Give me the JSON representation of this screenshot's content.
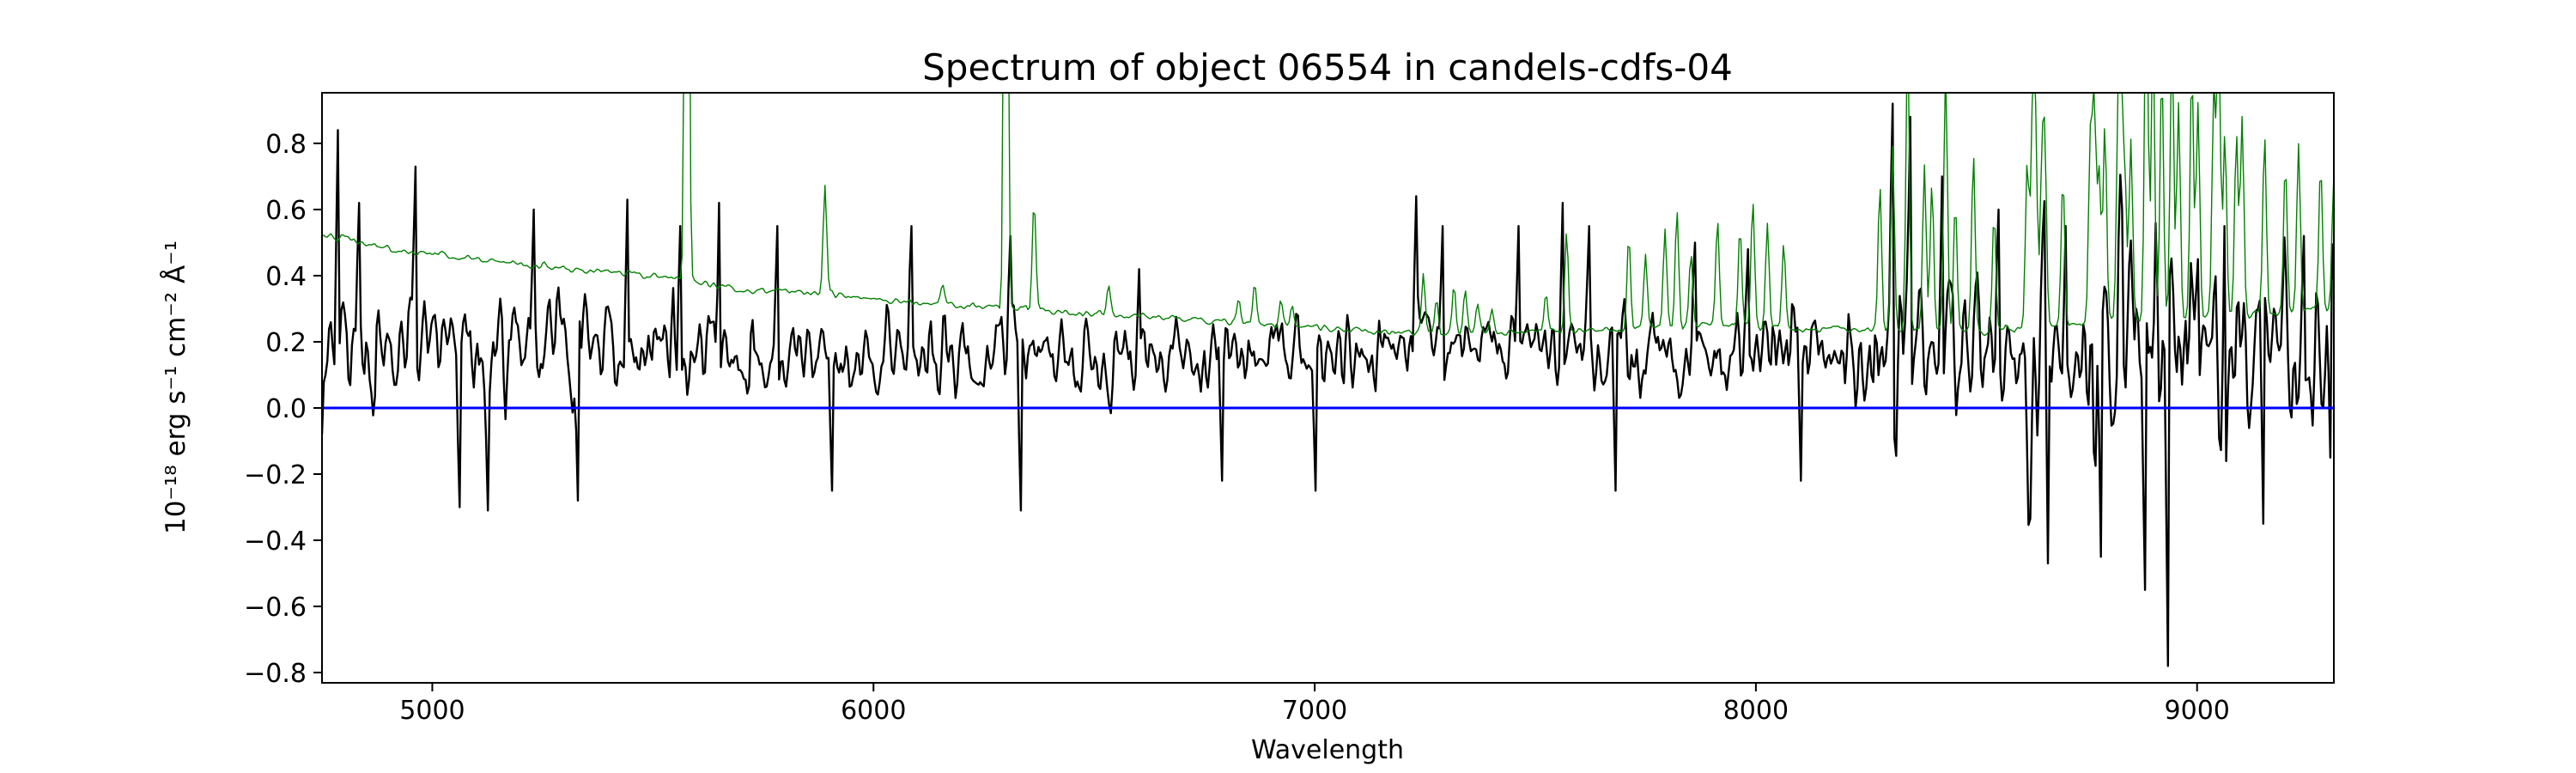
{
  "chart_data": {
    "type": "line",
    "title": "Spectrum of object 06554 in candels-cdfs-04",
    "xlabel": "Wavelength",
    "ylabel": "10⁻¹⁸ erg s⁻¹ cm⁻² Å⁻¹",
    "xlim": [
      4750,
      9310
    ],
    "ylim": [
      -0.831,
      0.953
    ],
    "grid": false,
    "legend": null,
    "xticks": [
      {
        "v": 5000,
        "label": "5000"
      },
      {
        "v": 6000,
        "label": "6000"
      },
      {
        "v": 7000,
        "label": "7000"
      },
      {
        "v": 8000,
        "label": "8000"
      },
      {
        "v": 9000,
        "label": "9000"
      }
    ],
    "yticks": [
      {
        "v": 0.8,
        "label": "0.8"
      },
      {
        "v": 0.6,
        "label": "0.6"
      },
      {
        "v": 0.4,
        "label": "0.4"
      },
      {
        "v": 0.2,
        "label": "0.2"
      },
      {
        "v": 0.0,
        "label": "0.0"
      },
      {
        "v": -0.2,
        "label": "−0.2"
      },
      {
        "v": -0.4,
        "label": "−0.4"
      },
      {
        "v": -0.6,
        "label": "−0.6"
      },
      {
        "v": -0.8,
        "label": "−0.8"
      }
    ],
    "series": [
      {
        "name": "object-flux-spectrum",
        "color": "#000000",
        "width": 2.4
      },
      {
        "name": "noise-sky-spectrum",
        "color": "#008000",
        "width": 1.4
      },
      {
        "name": "zero-flux-line",
        "color": "#0000ff",
        "width": 3.0,
        "y": 0.0
      }
    ],
    "synthesis": {
      "seed": 42,
      "step": 4,
      "black_continuum": [
        [
          4750,
          0.2
        ],
        [
          5200,
          0.18
        ],
        [
          5800,
          0.16
        ],
        [
          6400,
          0.15
        ],
        [
          6900,
          0.17
        ],
        [
          7400,
          0.2
        ],
        [
          7900,
          0.17
        ],
        [
          8400,
          0.17
        ],
        [
          9310,
          0.15
        ]
      ],
      "black_sigma": [
        [
          4750,
          0.155
        ],
        [
          5300,
          0.13
        ],
        [
          6000,
          0.105
        ],
        [
          6800,
          0.095
        ],
        [
          7300,
          0.09
        ],
        [
          7800,
          0.1
        ],
        [
          8300,
          0.12
        ],
        [
          8700,
          0.14
        ],
        [
          9310,
          0.13
        ]
      ],
      "black_features": [
        [
          4785,
          0.84
        ],
        [
          4835,
          0.62
        ],
        [
          4960,
          0.73
        ],
        [
          5060,
          -0.3
        ],
        [
          5125,
          -0.31
        ],
        [
          5230,
          0.6
        ],
        [
          5330,
          -0.28
        ],
        [
          5440,
          0.63
        ],
        [
          5560,
          0.55
        ],
        [
          5650,
          0.62
        ],
        [
          5780,
          0.55
        ],
        [
          5905,
          -0.25
        ],
        [
          6085,
          0.55
        ],
        [
          6310,
          0.52
        ],
        [
          6335,
          -0.31
        ],
        [
          6600,
          0.42
        ],
        [
          6790,
          -0.22
        ],
        [
          7000,
          -0.25
        ],
        [
          7230,
          0.64
        ],
        [
          7290,
          0.55
        ],
        [
          7460,
          0.55
        ],
        [
          7560,
          0.62
        ],
        [
          7620,
          0.55
        ],
        [
          7680,
          -0.25
        ],
        [
          7860,
          0.5
        ],
        [
          7980,
          0.48
        ],
        [
          8100,
          -0.22
        ],
        [
          8310,
          0.92
        ],
        [
          8350,
          0.88
        ],
        [
          8420,
          0.7
        ],
        [
          8550,
          0.6
        ],
        [
          8660,
          -0.47
        ],
        [
          8700,
          0.55
        ],
        [
          8780,
          -0.45
        ],
        [
          8830,
          0.6
        ],
        [
          8880,
          -0.55
        ],
        [
          8935,
          -0.78
        ],
        [
          9000,
          0.45
        ],
        [
          9060,
          0.55
        ],
        [
          9150,
          -0.35
        ],
        [
          9240,
          0.52
        ],
        [
          9300,
          -0.15
        ]
      ],
      "green_continuum": [
        [
          4750,
          0.53
        ],
        [
          4900,
          0.48
        ],
        [
          5100,
          0.45
        ],
        [
          5300,
          0.42
        ],
        [
          5500,
          0.4
        ],
        [
          5700,
          0.36
        ],
        [
          5900,
          0.345
        ],
        [
          6100,
          0.32
        ],
        [
          6300,
          0.3
        ],
        [
          6500,
          0.285
        ],
        [
          6700,
          0.27
        ],
        [
          6900,
          0.25
        ],
        [
          7100,
          0.235
        ],
        [
          7300,
          0.225
        ],
        [
          7500,
          0.23
        ],
        [
          7700,
          0.235
        ],
        [
          7900,
          0.25
        ],
        [
          8100,
          0.24
        ],
        [
          8300,
          0.235
        ],
        [
          8500,
          0.23
        ],
        [
          8700,
          0.25
        ],
        [
          8900,
          0.27
        ],
        [
          9100,
          0.28
        ],
        [
          9310,
          0.3
        ]
      ],
      "green_wiggle": 0.008,
      "sky_lines": [
        [
          5577,
          3.0,
          4
        ],
        [
          5890,
          0.33,
          4
        ],
        [
          6157,
          0.06,
          4
        ],
        [
          6300,
          2.6,
          4
        ],
        [
          6364,
          0.33,
          4
        ],
        [
          6533,
          0.08,
          4
        ],
        [
          6828,
          0.07,
          4
        ],
        [
          6864,
          0.12,
          4
        ],
        [
          6923,
          0.08,
          4
        ],
        [
          6949,
          0.07,
          4
        ],
        [
          7246,
          0.18,
          4
        ],
        [
          7276,
          0.1,
          4
        ],
        [
          7316,
          0.14,
          4
        ],
        [
          7341,
          0.12,
          4
        ],
        [
          7369,
          0.08,
          4
        ],
        [
          7402,
          0.07,
          4
        ],
        [
          7524,
          0.12,
          4
        ],
        [
          7571,
          0.3,
          4
        ],
        [
          7712,
          0.28,
          4
        ],
        [
          7750,
          0.22,
          4
        ],
        [
          7794,
          0.3,
          4
        ],
        [
          7821,
          0.36,
          4
        ],
        [
          7853,
          0.22,
          4
        ],
        [
          7913,
          0.32,
          4
        ],
        [
          7964,
          0.3,
          4
        ],
        [
          7993,
          0.38,
          4
        ],
        [
          8026,
          0.32,
          4
        ],
        [
          8063,
          0.26,
          4
        ],
        [
          8281,
          0.45,
          4
        ],
        [
          8310,
          0.55,
          4
        ],
        [
          8344,
          0.85,
          4
        ],
        [
          8382,
          0.5,
          4
        ],
        [
          8399,
          0.45,
          4
        ],
        [
          8430,
          0.8,
          4
        ],
        [
          8452,
          0.4,
          4
        ],
        [
          8493,
          0.55,
          4
        ],
        [
          8540,
          0.35,
          4
        ],
        [
          8615,
          0.5,
          4
        ],
        [
          8627,
          0.6,
          4
        ],
        [
          8634,
          0.55,
          4
        ],
        [
          8648,
          0.45,
          4
        ],
        [
          8655,
          0.5,
          4
        ],
        [
          8696,
          0.45,
          4
        ],
        [
          8758,
          0.55,
          4
        ],
        [
          8767,
          0.65,
          4
        ],
        [
          8778,
          0.45,
          4
        ],
        [
          8791,
          0.6,
          4
        ],
        [
          8821,
          0.55,
          4
        ],
        [
          8827,
          0.65,
          4
        ],
        [
          8836,
          0.45,
          4
        ],
        [
          8850,
          0.55,
          4
        ],
        [
          8885,
          1.1,
          4
        ],
        [
          8900,
          0.85,
          4
        ],
        [
          8920,
          0.75,
          4
        ],
        [
          8943,
          0.85,
          4
        ],
        [
          8958,
          0.65,
          4
        ],
        [
          8988,
          0.75,
          4
        ],
        [
          9002,
          0.65,
          4
        ],
        [
          9038,
          0.7,
          4
        ],
        [
          9049,
          0.85,
          4
        ],
        [
          9063,
          0.55,
          4
        ],
        [
          9089,
          0.55,
          4
        ],
        [
          9102,
          0.6,
          4
        ],
        [
          9153,
          0.55,
          4
        ],
        [
          9200,
          0.45,
          4
        ],
        [
          9230,
          0.5,
          4
        ],
        [
          9280,
          0.45,
          4
        ],
        [
          9310,
          0.4,
          4
        ]
      ]
    }
  }
}
